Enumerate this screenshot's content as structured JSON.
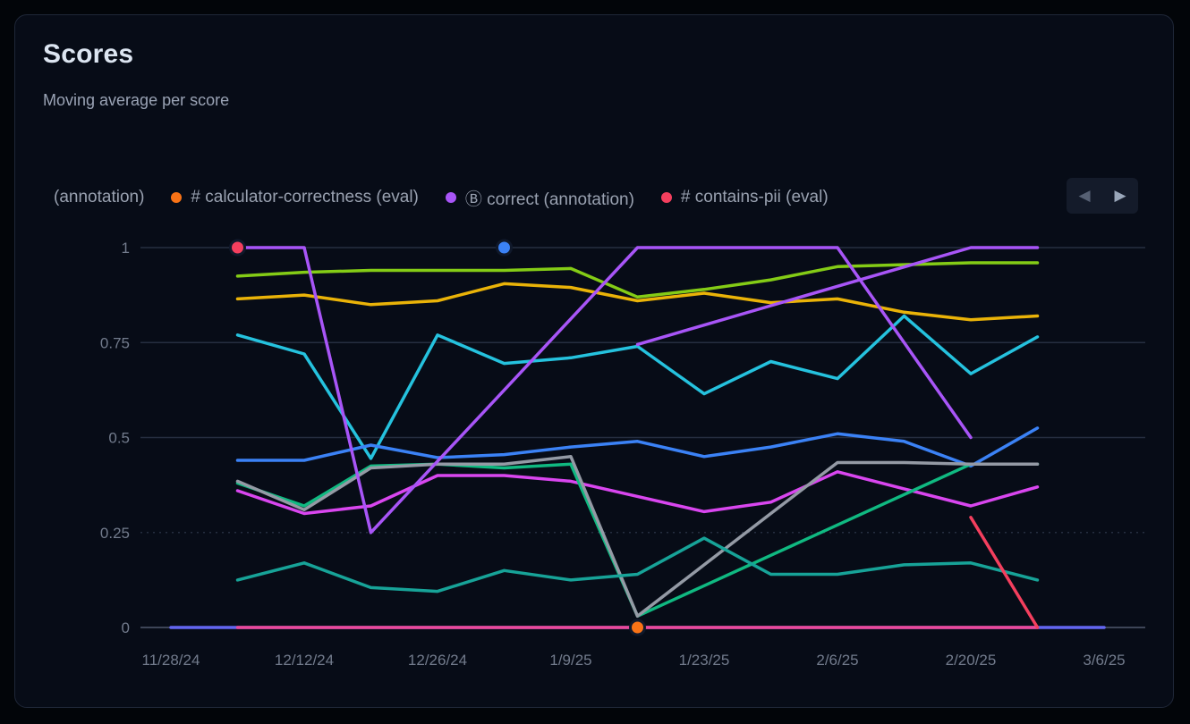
{
  "header": {
    "title": "Scores",
    "subtitle": "Moving average per score"
  },
  "legend": {
    "items": [
      {
        "label": "(annotation)",
        "color": null
      },
      {
        "label": "# calculator-correctness (eval)",
        "color": "#f97316"
      },
      {
        "label": "Ⓑ correct (annotation)",
        "color": "#a855f7"
      },
      {
        "label": "# contains-pii (eval)",
        "color": "#f43f5e"
      }
    ],
    "nav": {
      "prev": "◀",
      "next": "▶"
    }
  },
  "chart_data": {
    "type": "line",
    "title": "Scores",
    "subtitle": "Moving average per score",
    "xlabel": "",
    "ylabel": "",
    "ylim": [
      0,
      1
    ],
    "grid": true,
    "legend_position": "top",
    "x_tick_labels": [
      "11/28/24",
      "12/12/24",
      "12/26/24",
      "1/9/25",
      "1/23/25",
      "2/6/25",
      "2/20/25",
      "3/6/25"
    ],
    "y_tick_labels": [
      "0",
      "0.25",
      "0.5",
      "0.75",
      "1"
    ],
    "y_tick_values": [
      0,
      0.25,
      0.5,
      0.75,
      1
    ],
    "week_dates": [
      "11/28/24",
      "12/5/24",
      "12/12/24",
      "12/19/24",
      "12/26/24",
      "1/2/25",
      "1/9/25",
      "1/16/25",
      "1/23/25",
      "1/30/25",
      "2/6/25",
      "2/13/25",
      "2/20/25",
      "2/27/25",
      "3/6/25"
    ],
    "series": [
      {
        "id": "indigo-zero",
        "color": "#6366f1",
        "start_week": 0,
        "values": [
          0,
          0,
          0,
          0,
          0,
          0,
          0,
          0,
          0,
          0,
          0,
          0,
          0,
          0,
          0
        ]
      },
      {
        "id": "lime",
        "color": "#84cc16",
        "start_week": 1,
        "values": [
          0.925,
          0.935,
          0.94,
          0.94,
          0.94,
          0.945,
          0.87,
          0.89,
          0.915,
          0.95,
          0.955,
          0.96,
          0.96
        ]
      },
      {
        "id": "amber",
        "color": "#eab308",
        "start_week": 1,
        "values": [
          0.865,
          0.875,
          0.85,
          0.86,
          0.905,
          0.895,
          0.86,
          0.88,
          0.855,
          0.865,
          0.83,
          0.81,
          0.82
        ]
      },
      {
        "id": "cyan",
        "color": "#25c2de",
        "start_week": 1,
        "values": [
          0.77,
          0.72,
          0.445,
          0.77,
          0.695,
          0.71,
          0.74,
          0.615,
          0.7,
          0.655,
          0.82,
          0.668,
          0.765
        ]
      },
      {
        "id": "blue",
        "color": "#3b82f6",
        "start_week": 1,
        "values": [
          0.44,
          0.44,
          0.48,
          0.447,
          0.455,
          0.475,
          0.49,
          0.45,
          0.475,
          0.51,
          0.49,
          0.425,
          0.525
        ]
      },
      {
        "id": "fuchsia",
        "color": "#d946ef",
        "start_week": 1,
        "values": [
          0.36,
          0.3,
          0.32,
          0.4,
          0.4,
          0.385,
          0.345,
          0.305,
          0.33,
          0.41,
          0.365,
          0.32,
          0.37
        ]
      },
      {
        "id": "emerald",
        "color": "#10b981",
        "start_week": 1,
        "values": [
          0.38,
          0.32,
          0.425,
          0.43,
          0.42,
          0.43,
          0.03,
          0.11,
          0.19,
          0.27,
          0.35,
          0.43,
          0.43
        ]
      },
      {
        "id": "gray",
        "color": "#949aa5",
        "start_week": 1,
        "values": [
          0.385,
          0.31,
          0.42,
          0.43,
          0.43,
          0.45,
          0.03,
          0.165,
          0.3,
          0.434,
          0.434,
          0.43,
          0.43
        ]
      },
      {
        "id": "teal",
        "color": "#17a398",
        "start_week": 1,
        "values": [
          0.125,
          0.17,
          0.105,
          0.095,
          0.15,
          0.125,
          0.14,
          0.235,
          0.14,
          0.14,
          0.165,
          0.17,
          0.125
        ]
      },
      {
        "id": "violet-a",
        "color": "#a855f7",
        "start_week": 1,
        "values": [
          1,
          1,
          0.25,
          0.4375,
          0.625,
          0.8125,
          1,
          1,
          1,
          1,
          0.75,
          0.5
        ]
      },
      {
        "id": "violet-b",
        "color": "#a855f7",
        "start_week": 7,
        "values": [
          0.745,
          0.796,
          0.847,
          0.898,
          0.949,
          1,
          1
        ]
      },
      {
        "id": "pink-zero",
        "color": "#ec4899",
        "start_week": 1,
        "values": [
          0,
          0,
          0,
          0,
          0,
          0,
          0,
          0,
          0,
          0,
          0,
          0,
          0
        ]
      },
      {
        "id": "red",
        "color": "#f43f5e",
        "start_week": 12,
        "values": [
          0.29,
          0
        ]
      }
    ],
    "point_markers": [
      {
        "id": "red-point",
        "color": "#f43f5e",
        "week": 1,
        "value": 1
      },
      {
        "id": "blue-point",
        "color": "#3b82f6",
        "week": 5,
        "value": 1
      },
      {
        "id": "orange-point",
        "color": "#f97316",
        "week": 7,
        "value": 0
      }
    ]
  }
}
